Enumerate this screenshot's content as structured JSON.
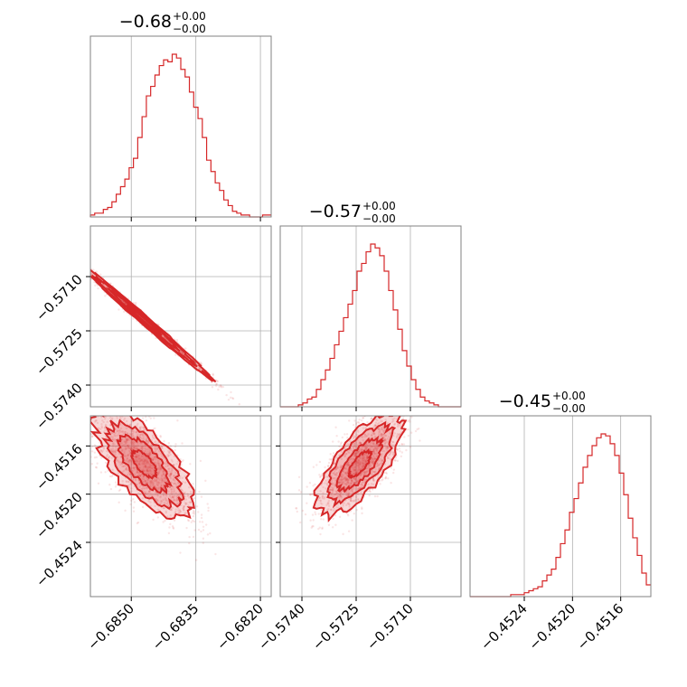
{
  "chart_data": {
    "type": "corner",
    "color": "#d62728",
    "parameters": [
      {
        "title_value": "−0.68",
        "title_plus": "+0.00",
        "title_minus": "−0.00",
        "range": [
          -0.68595,
          -0.68175
        ],
        "ticks": [
          -0.685,
          -0.6835,
          -0.682
        ],
        "tick_labels": [
          "−0.6850",
          "−0.6835",
          "−0.6820"
        ]
      },
      {
        "title_value": "−0.57",
        "title_plus": "+0.00",
        "title_minus": "−0.00",
        "range": [
          -0.5746,
          -0.5696
        ],
        "ticks": [
          -0.574,
          -0.5725,
          -0.571
        ],
        "tick_labels": [
          "−0.5740",
          "−0.5725",
          "−0.5710"
        ]
      },
      {
        "title_value": "−0.45",
        "title_plus": "+0.00",
        "title_minus": "−0.00",
        "range": [
          -0.45285,
          -0.45135
        ],
        "ticks": [
          -0.4524,
          -0.452,
          -0.4516
        ],
        "tick_labels": [
          "−0.4524",
          "−0.4520",
          "−0.4516"
        ]
      }
    ],
    "histograms": [
      {
        "parameter": 0,
        "bin_start": -0.68595,
        "bin_width": 0.0001,
        "counts": [
          1,
          2,
          2,
          4,
          5,
          8,
          12,
          16,
          20,
          26,
          31,
          42,
          53,
          64,
          69,
          75,
          80,
          83,
          82,
          86,
          84,
          78,
          74,
          66,
          58,
          52,
          42,
          30,
          24,
          18,
          14,
          9,
          6,
          3,
          2,
          1,
          1,
          0,
          0,
          0,
          1,
          1
        ]
      },
      {
        "parameter": 1,
        "bin_start": -0.5746,
        "bin_width": 0.000125,
        "counts": [
          0,
          0,
          0,
          0,
          1,
          2,
          4,
          5,
          9,
          14,
          19,
          25,
          32,
          39,
          46,
          53,
          60,
          70,
          74,
          80,
          84,
          82,
          78,
          70,
          60,
          50,
          40,
          29,
          21,
          14,
          9,
          5,
          3,
          2,
          1,
          0,
          0,
          0,
          0,
          0
        ]
      },
      {
        "parameter": 2,
        "bin_start": -0.45285,
        "bin_width": 3.75e-05,
        "counts": [
          0,
          0,
          0,
          0,
          0,
          0,
          0,
          0,
          0,
          1,
          1,
          1,
          2,
          3,
          4,
          5,
          8,
          11,
          14,
          20,
          27,
          34,
          43,
          50,
          58,
          66,
          72,
          77,
          81,
          83,
          82,
          78,
          72,
          63,
          52,
          40,
          30,
          21,
          12,
          6
        ]
      }
    ],
    "scatter_panels": [
      {
        "x_parameter": 0,
        "y_parameter": 1,
        "center": [
          -0.6847,
          -0.5722
        ],
        "sd_major": [
          0.00075,
          -0.00078
        ],
        "sd_minor": [
          4e-05,
          4e-05
        ],
        "points": 1400
      },
      {
        "x_parameter": 0,
        "y_parameter": 2,
        "center": [
          -0.6847,
          -0.45175
        ],
        "sd_major": [
          0.00055,
          -0.00019
        ],
        "sd_minor": [
          0.00016,
          0.00012
        ],
        "points": 1400
      },
      {
        "x_parameter": 1,
        "y_parameter": 2,
        "center": [
          -0.5724,
          -0.45175
        ],
        "sd_major": [
          0.00058,
          0.00018
        ],
        "sd_minor": [
          0.00014,
          -0.00011
        ],
        "points": 1400
      }
    ],
    "contour_levels": [
      0.5,
      1.0,
      1.5,
      2.0
    ],
    "grid": true,
    "legend": "none"
  }
}
